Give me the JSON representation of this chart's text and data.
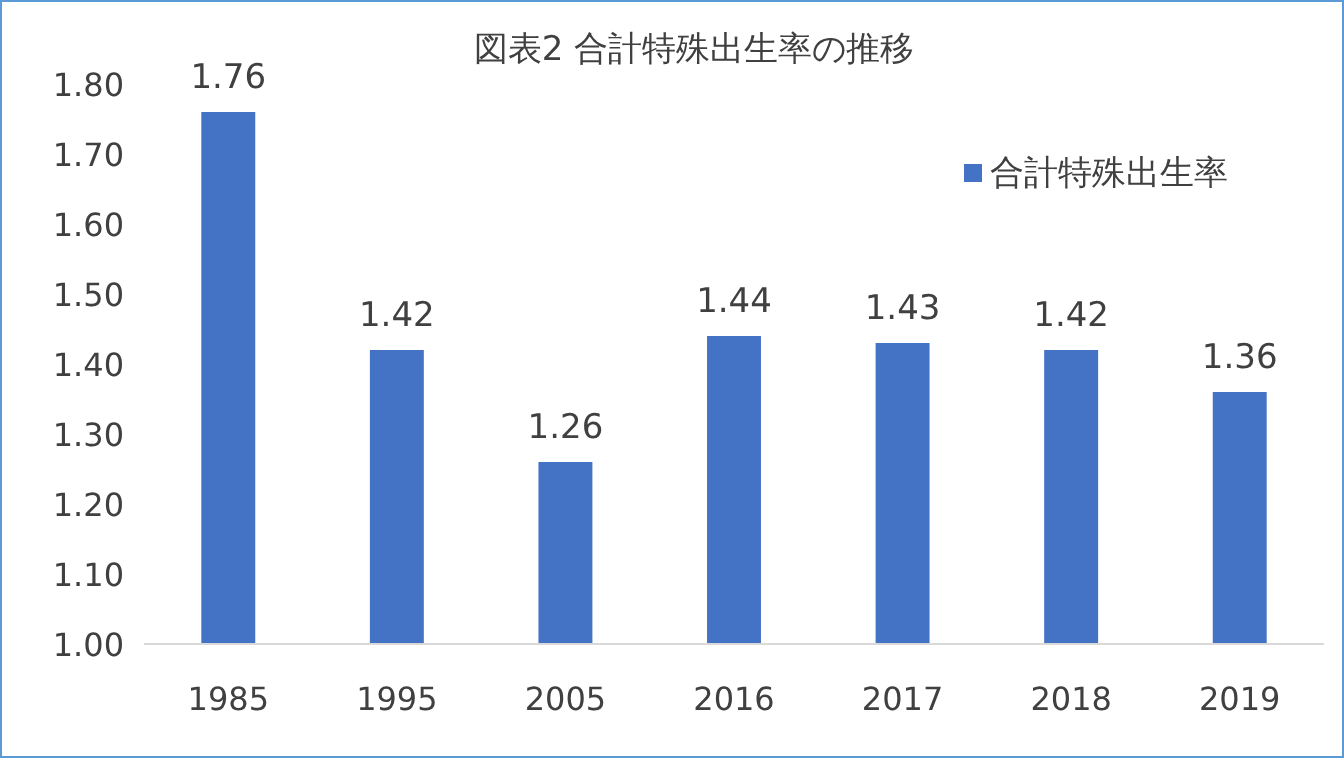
{
  "chart_data": {
    "type": "bar",
    "title": "図表2 合計特殊出生率の推移",
    "categories": [
      "1985",
      "1995",
      "2005",
      "2016",
      "2017",
      "2018",
      "2019"
    ],
    "series": [
      {
        "name": "合計特殊出生率",
        "color": "#4472c4",
        "values": [
          1.76,
          1.42,
          1.26,
          1.44,
          1.43,
          1.42,
          1.36
        ]
      }
    ],
    "ylim": [
      1.0,
      1.8
    ],
    "yticks": [
      {
        "value": 1.0,
        "label": "1.00"
      },
      {
        "value": 1.1,
        "label": "1.10"
      },
      {
        "value": 1.2,
        "label": "1.20"
      },
      {
        "value": 1.3,
        "label": "1.30"
      },
      {
        "value": 1.4,
        "label": "1.40"
      },
      {
        "value": 1.5,
        "label": "1.50"
      },
      {
        "value": 1.6,
        "label": "1.60"
      },
      {
        "value": 1.7,
        "label": "1.70"
      },
      {
        "value": 1.8,
        "label": "1.80"
      }
    ],
    "data_labels": true,
    "legend": "top right"
  }
}
